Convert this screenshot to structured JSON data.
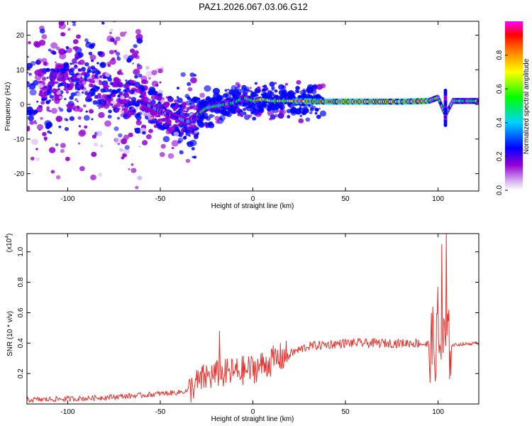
{
  "title": "PAZ1.2026.067.03.06.G12",
  "chart_data": [
    {
      "type": "heatmap",
      "name": "spectrogram",
      "xlabel": "Height of straight line (km)",
      "ylabel": "Frequency (Hz)",
      "xlim": [
        -122,
        122
      ],
      "ylim": [
        -25,
        24
      ],
      "xticks": [
        -100,
        -50,
        0,
        50,
        100
      ],
      "yticks": [
        -20,
        -10,
        0,
        10,
        20
      ],
      "ridge": [
        {
          "x": -122,
          "y": 6
        },
        {
          "x": -110,
          "y": 5
        },
        {
          "x": -95,
          "y": 8
        },
        {
          "x": -80,
          "y": 4
        },
        {
          "x": -65,
          "y": 2
        },
        {
          "x": -50,
          "y": -2
        },
        {
          "x": -40,
          "y": -4
        },
        {
          "x": -35,
          "y": -5
        },
        {
          "x": -30,
          "y": -3
        },
        {
          "x": -25,
          "y": -1
        },
        {
          "x": -20,
          "y": -0.5
        },
        {
          "x": -15,
          "y": 0
        },
        {
          "x": -10,
          "y": 0.5
        },
        {
          "x": -5,
          "y": 2
        },
        {
          "x": 0,
          "y": 1
        },
        {
          "x": 5,
          "y": 1.5
        },
        {
          "x": 10,
          "y": 1
        },
        {
          "x": 20,
          "y": 1
        },
        {
          "x": 40,
          "y": 0.8
        },
        {
          "x": 60,
          "y": 0.8
        },
        {
          "x": 80,
          "y": 0.8
        },
        {
          "x": 95,
          "y": 1
        },
        {
          "x": 100,
          "y": 2
        },
        {
          "x": 104,
          "y": -3
        },
        {
          "x": 108,
          "y": 1
        },
        {
          "x": 122,
          "y": 1
        }
      ]
    },
    {
      "type": "colorbar",
      "label": "Normalized spectral amplitude",
      "range": [
        0,
        1
      ],
      "ticks": [
        "0.0",
        "0.2",
        "0.4",
        "0.6",
        "0.8"
      ],
      "tick_values": [
        0.0,
        0.2,
        0.4,
        0.6,
        0.8
      ],
      "colors": [
        "#ffffff",
        "#9400d3",
        "#0000ff",
        "#00d0ff",
        "#00ff00",
        "#ffff00",
        "#ff8000",
        "#ff0000",
        "#ff00ff"
      ]
    },
    {
      "type": "line",
      "name": "snr",
      "xlabel": "Height of straight line (km)",
      "ylabel": "SNR (10 * v/v)",
      "yscale_note": "(x10",
      "yscale_exp": "4",
      "xlim": [
        -122,
        122
      ],
      "ylim": [
        0,
        1.12
      ],
      "xticks": [
        -100,
        -50,
        0,
        50,
        100
      ],
      "yticks": [
        "0.2",
        "0.4",
        "0.6",
        "0.8",
        "1.0"
      ],
      "ytick_values": [
        0.2,
        0.4,
        0.6,
        0.8,
        1.0
      ],
      "color": "#e8322e",
      "trend": [
        {
          "x": -122,
          "y": 0.02
        },
        {
          "x": -90,
          "y": 0.03
        },
        {
          "x": -60,
          "y": 0.05
        },
        {
          "x": -40,
          "y": 0.07
        },
        {
          "x": -35,
          "y": 0.08
        },
        {
          "x": -32,
          "y": 0.12
        },
        {
          "x": -25,
          "y": 0.18
        },
        {
          "x": -15,
          "y": 0.2
        },
        {
          "x": 0,
          "y": 0.23
        },
        {
          "x": 10,
          "y": 0.28
        },
        {
          "x": 20,
          "y": 0.33
        },
        {
          "x": 30,
          "y": 0.38
        },
        {
          "x": 50,
          "y": 0.4
        },
        {
          "x": 70,
          "y": 0.4
        },
        {
          "x": 90,
          "y": 0.4
        },
        {
          "x": 98,
          "y": 0.38
        },
        {
          "x": 105,
          "y": 0.38
        },
        {
          "x": 110,
          "y": 0.39
        },
        {
          "x": 122,
          "y": 0.4
        }
      ],
      "spikes": [
        {
          "x": -18,
          "y": 0.48
        },
        {
          "x": 100,
          "y": 0.77
        },
        {
          "x": 102,
          "y": 1.05
        },
        {
          "x": 104.5,
          "y": 1.12
        },
        {
          "x": 97,
          "y": 0.64
        }
      ]
    }
  ]
}
